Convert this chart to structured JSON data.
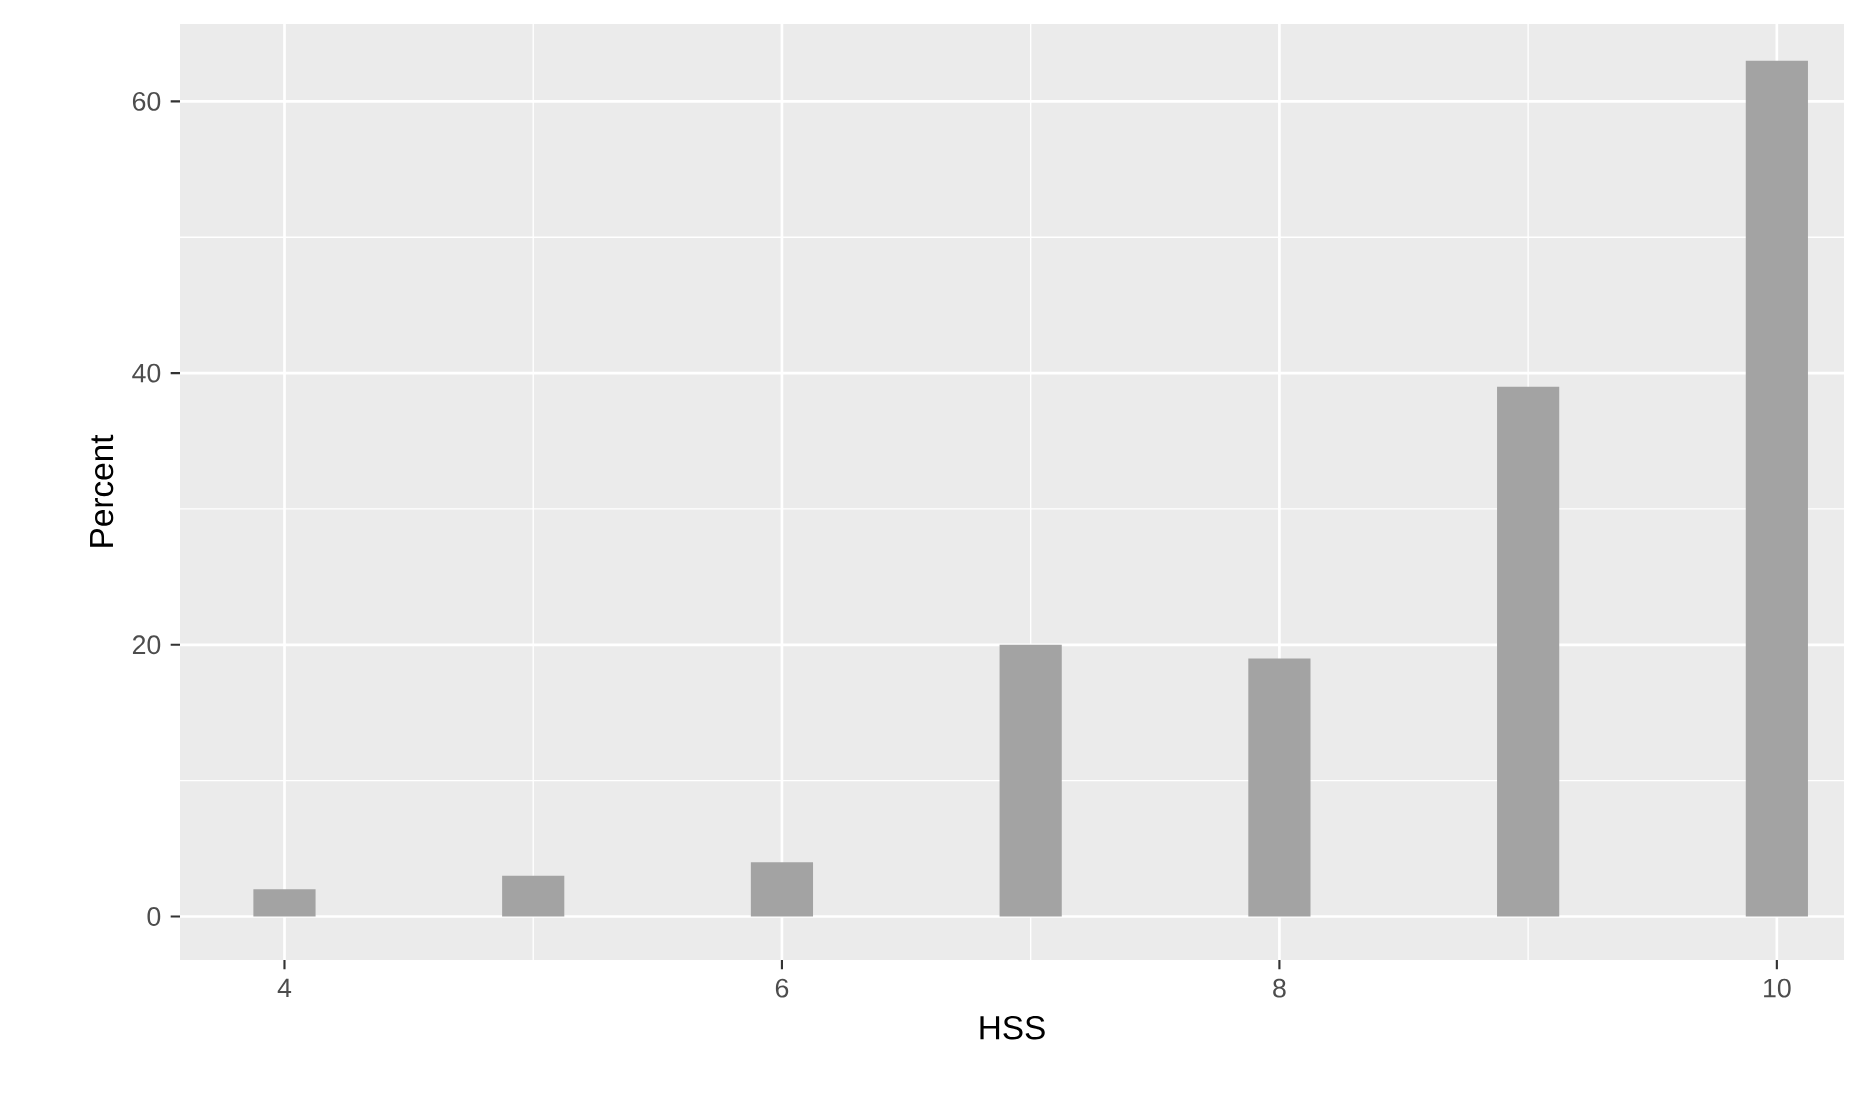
{
  "chart_data": {
    "type": "histogram",
    "xlabel": "HSS",
    "ylabel": "Percent",
    "bins": [
      3.875,
      4.125,
      4.375,
      4.625,
      4.875,
      5.125,
      5.375,
      5.625,
      5.875,
      6.125,
      6.375,
      6.625,
      6.875,
      7.125,
      7.375,
      7.625,
      7.875,
      8.125,
      8.375,
      8.625,
      8.875,
      9.125,
      9.375,
      9.625,
      9.875,
      10.125
    ],
    "values": [
      2,
      0,
      0,
      0,
      3,
      0,
      0,
      0,
      4,
      0,
      0,
      0,
      20,
      0,
      0,
      0,
      19,
      0,
      0,
      0,
      39,
      0,
      0,
      0,
      63
    ],
    "color": "#a3a3a3",
    "xlim": [
      3.58,
      10.27
    ],
    "ylim": [
      -3.2,
      65.7
    ],
    "xticks": [
      4,
      6,
      8,
      10
    ],
    "yticks": [
      0,
      20,
      40,
      60
    ],
    "grid": true
  }
}
